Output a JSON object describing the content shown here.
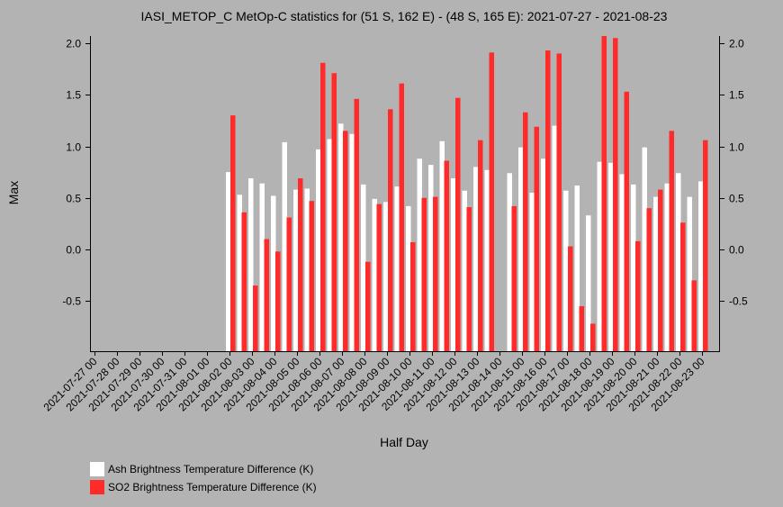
{
  "chart_data": {
    "type": "bar",
    "title": "IASI_METOP_C MetOp-C statistics for (51 S, 162 E) - (48 S, 165 E): 2021-07-27 - 2021-08-23",
    "xlabel": "Half Day",
    "ylabel": "Max",
    "ylim": [
      -1.0,
      2.05
    ],
    "yticks": [
      -0.5,
      0.0,
      0.5,
      1.0,
      1.5,
      2.0
    ],
    "ytick_labels": [
      "-0.5",
      "0.0",
      "0.5",
      "1.0",
      "1.5",
      "2.0"
    ],
    "x_tick_labels": [
      "2021-07-27 00",
      "2021-07-28 00",
      "2021-07-29 00",
      "2021-07-30 00",
      "2021-07-31 00",
      "2021-08-01 00",
      "2021-08-02 00",
      "2021-08-03 00",
      "2021-08-04 00",
      "2021-08-05 00",
      "2021-08-06 00",
      "2021-08-07 00",
      "2021-08-08 00",
      "2021-08-09 00",
      "2021-08-10 00",
      "2021-08-11 00",
      "2021-08-12 00",
      "2021-08-13 00",
      "2021-08-14 00",
      "2021-08-15 00",
      "2021-08-16 00",
      "2021-08-17 00",
      "2021-08-18 00",
      "2021-08-19 00",
      "2021-08-20 00",
      "2021-08-21 00",
      "2021-08-22 00",
      "2021-08-23 00"
    ],
    "grid": false,
    "legend_position": "bottom-left",
    "series": [
      {
        "name": "Ash Brightness Temperature Difference (K)",
        "color": "#ffffff",
        "values": [
          null,
          null,
          null,
          null,
          null,
          null,
          null,
          null,
          null,
          null,
          null,
          null,
          0.75,
          0.53,
          0.69,
          0.64,
          0.52,
          1.04,
          0.58,
          0.59,
          0.97,
          1.07,
          1.22,
          1.12,
          0.63,
          0.49,
          0.46,
          0.61,
          0.42,
          0.88,
          0.82,
          1.05,
          0.69,
          0.57,
          0.8,
          0.77,
          null,
          0.74,
          0.99,
          0.55,
          0.88,
          1.2,
          0.57,
          0.62,
          0.33,
          0.85,
          0.84,
          0.73,
          0.63,
          0.99,
          0.51,
          0.64,
          0.74,
          0.51,
          0.66
        ]
      },
      {
        "name": "SO2 Brightness Temperature Difference (K)",
        "color": "#ff2a2a",
        "values": [
          null,
          null,
          null,
          null,
          null,
          null,
          null,
          null,
          null,
          null,
          null,
          null,
          1.3,
          0.36,
          -0.35,
          0.1,
          -0.02,
          0.31,
          0.69,
          0.47,
          1.81,
          1.71,
          1.15,
          1.46,
          -0.12,
          0.44,
          1.36,
          1.61,
          0.07,
          0.5,
          0.51,
          0.86,
          1.47,
          0.41,
          1.06,
          1.91,
          null,
          0.42,
          1.33,
          1.19,
          1.93,
          1.9,
          0.03,
          -0.55,
          -0.72,
          2.07,
          2.05,
          1.53,
          0.08,
          0.4,
          0.58,
          1.15,
          0.26,
          -0.3,
          1.06
        ]
      }
    ]
  }
}
